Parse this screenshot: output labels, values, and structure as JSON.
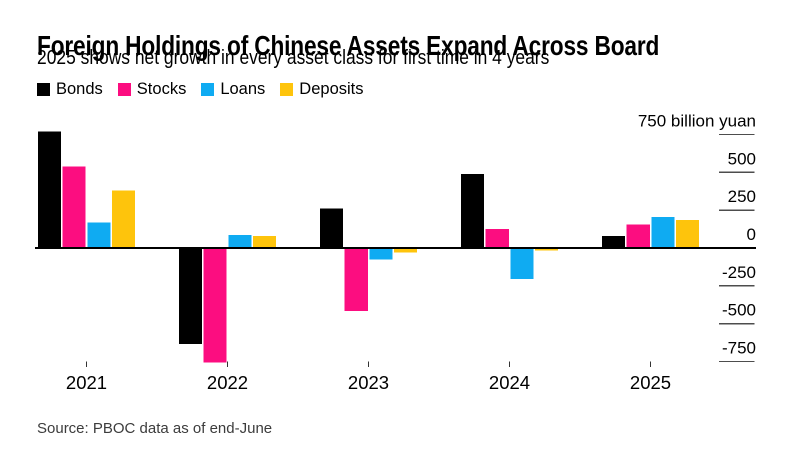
{
  "header": {
    "title": "Foreign Holdings of Chinese Assets Expand Across Board",
    "subtitle": "2025 shows net growth in every asset class for first time in 4 years"
  },
  "legend": {
    "items": [
      {
        "label": "Bonds",
        "color": "#000000"
      },
      {
        "label": "Stocks",
        "color": "#fc0d80"
      },
      {
        "label": "Loans",
        "color": "#0fabf2"
      },
      {
        "label": "Deposits",
        "color": "#fec40c"
      }
    ]
  },
  "chart_data": {
    "type": "bar",
    "title": "Foreign Holdings of Chinese Assets Expand Across Board",
    "subtitle": "2025 shows net growth in every asset class for first time in 4 years",
    "unit": "billion yuan",
    "categories": [
      "2021",
      "2022",
      "2023",
      "2024",
      "2025"
    ],
    "series": [
      {
        "name": "Bonds",
        "color": "#000000",
        "values": [
          770,
          -635,
          260,
          490,
          80
        ]
      },
      {
        "name": "Stocks",
        "color": "#fc0d80",
        "values": [
          540,
          -755,
          -415,
          125,
          155
        ]
      },
      {
        "name": "Loans",
        "color": "#0fabf2",
        "values": [
          170,
          85,
          -75,
          -205,
          205
        ]
      },
      {
        "name": "Deposits",
        "color": "#fec40c",
        "values": [
          380,
          80,
          -30,
          -15,
          185
        ]
      }
    ],
    "y_axis": {
      "position": "right",
      "range": [
        -750,
        750
      ],
      "tick_interval": 250,
      "ticks": [
        {
          "value": 750,
          "label": "750 billion yuan"
        },
        {
          "value": 500,
          "label": "500"
        },
        {
          "value": 250,
          "label": "250"
        },
        {
          "value": 0,
          "label": "0"
        },
        {
          "value": -250,
          "label": "-250"
        },
        {
          "value": -500,
          "label": "-500"
        },
        {
          "value": -750,
          "label": "-750"
        }
      ]
    },
    "grid": false,
    "legend_position": "top",
    "baseline_value": 0
  },
  "footer": {
    "source": "Source: PBOC data as of end-June"
  }
}
